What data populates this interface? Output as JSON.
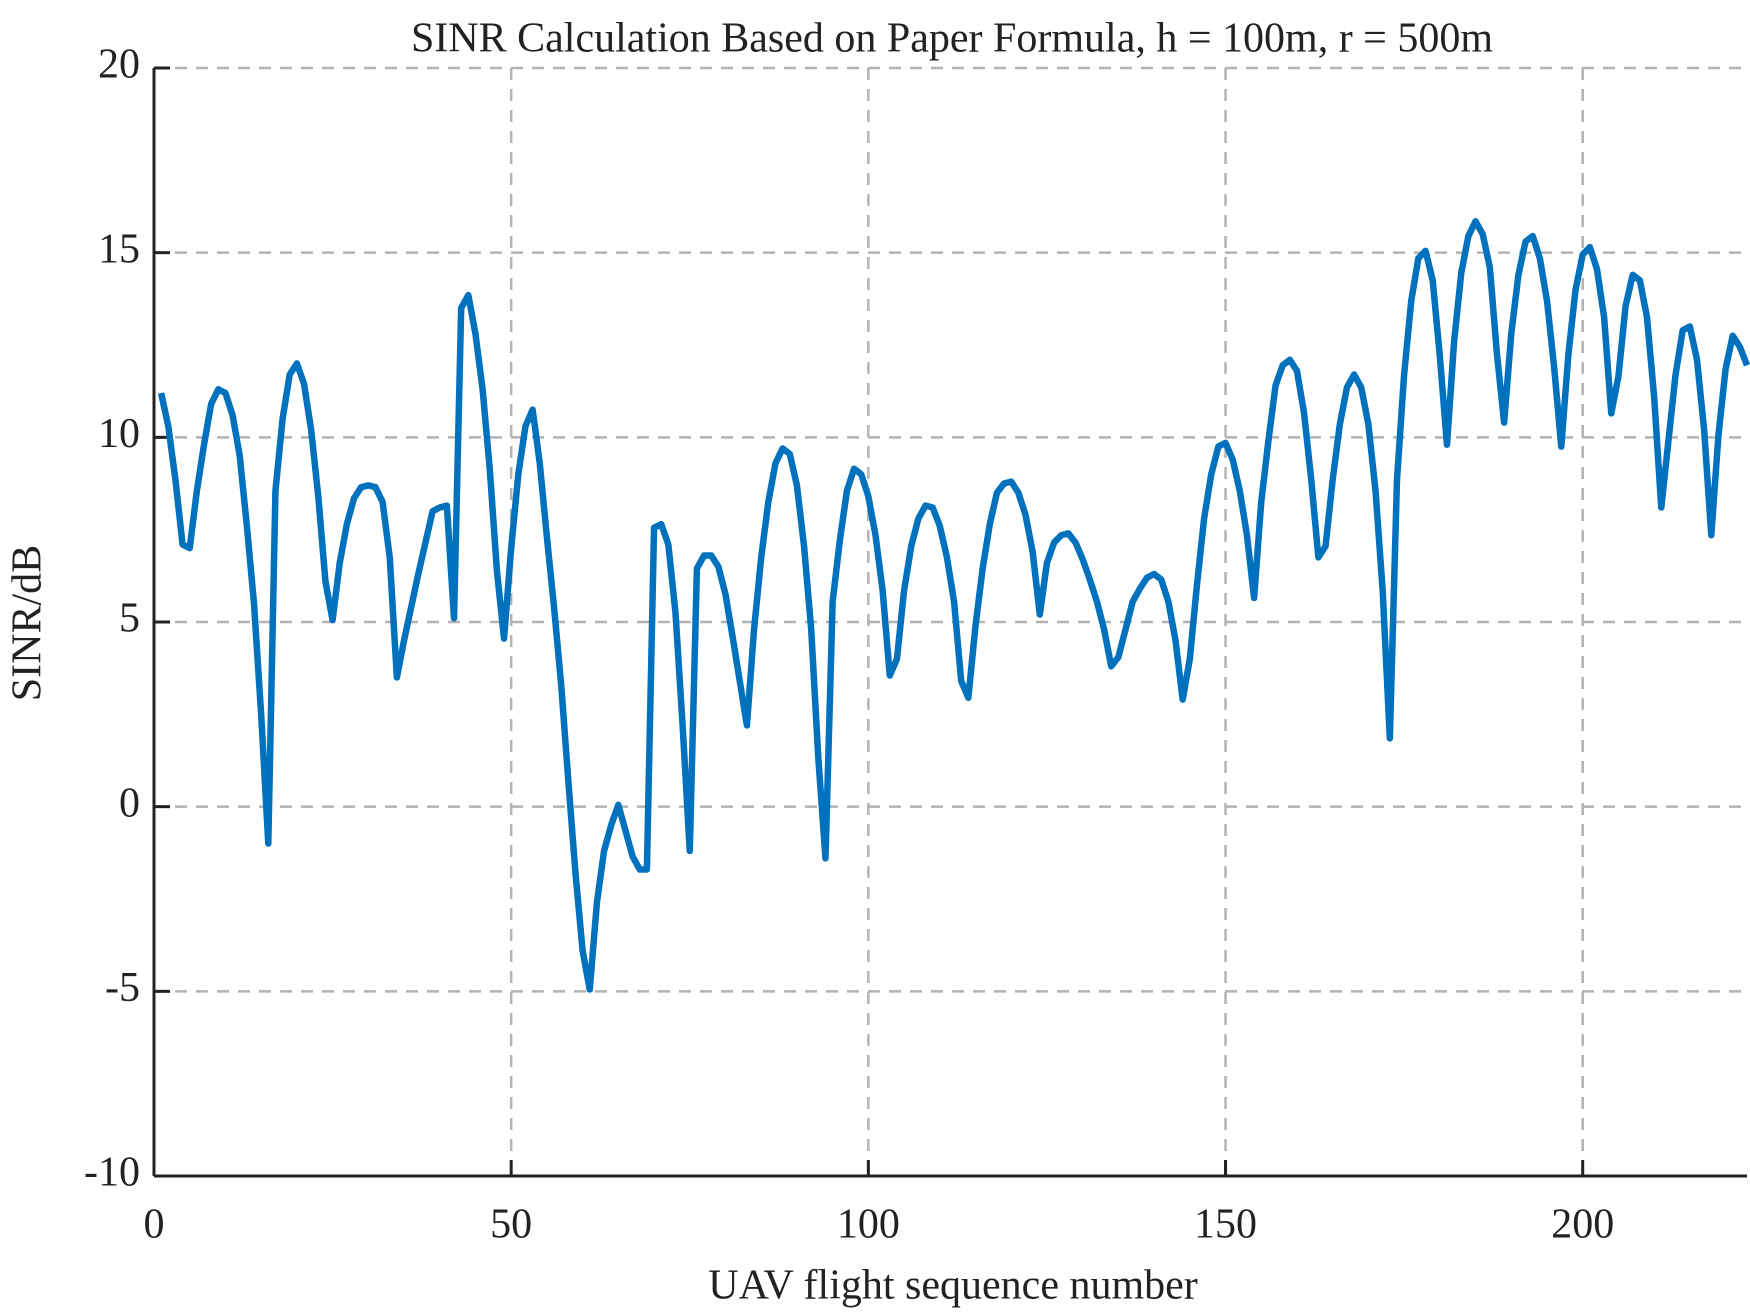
{
  "chart_data": {
    "type": "line",
    "title": "SINR Calculation Based on Paper Formula, h = 100m, r = 500m",
    "xlabel": "UAV flight sequence number",
    "ylabel": "SINR/dB",
    "color": "#0072bd",
    "grid": true,
    "xlim": [
      0,
      223
    ],
    "ylim": [
      -10,
      20
    ],
    "xticks": [
      0,
      50,
      100,
      150,
      200
    ],
    "yticks": [
      -10,
      -5,
      0,
      5,
      10,
      15,
      20
    ],
    "x": [
      1,
      2,
      3,
      4,
      5,
      6,
      7,
      8,
      9,
      10,
      11,
      12,
      13,
      14,
      15,
      16,
      17,
      18,
      19,
      20,
      21,
      22,
      23,
      24,
      25,
      26,
      27,
      28,
      29,
      30,
      31,
      32,
      33,
      34,
      35,
      36,
      37,
      38,
      39,
      40,
      41,
      42,
      43,
      44,
      45,
      46,
      47,
      48,
      49,
      50,
      51,
      52,
      53,
      54,
      55,
      56,
      57,
      58,
      59,
      60,
      61,
      62,
      63,
      64,
      65,
      66,
      67,
      68,
      69,
      70,
      71,
      72,
      73,
      74,
      75,
      76,
      77,
      78,
      79,
      80,
      81,
      82,
      83,
      84,
      85,
      86,
      87,
      88,
      89,
      90,
      91,
      92,
      93,
      94,
      95,
      96,
      97,
      98,
      99,
      100,
      101,
      102,
      103,
      104,
      105,
      106,
      107,
      108,
      109,
      110,
      111,
      112,
      113,
      114,
      115,
      116,
      117,
      118,
      119,
      120,
      121,
      122,
      123,
      124,
      125,
      126,
      127,
      128,
      129,
      130,
      131,
      132,
      133,
      134,
      135,
      136,
      137,
      138,
      139,
      140,
      141,
      142,
      143,
      144,
      145,
      146,
      147,
      148,
      149,
      150,
      151,
      152,
      153,
      154,
      155,
      156,
      157,
      158,
      159,
      160,
      161,
      162,
      163,
      164,
      165,
      166,
      167,
      168,
      169,
      170,
      171,
      172,
      173,
      174,
      175,
      176,
      177,
      178,
      179,
      180,
      181,
      182,
      183,
      184,
      185,
      186,
      187,
      188,
      189,
      190,
      191,
      192,
      193,
      194,
      195,
      196,
      197,
      198,
      199,
      200,
      201,
      202,
      203,
      204,
      205,
      206,
      207,
      208,
      209,
      210,
      211,
      212,
      213,
      214,
      215,
      216,
      217,
      218,
      219,
      220,
      221,
      222,
      223
    ],
    "values": [
      11.2,
      10.3,
      8.85,
      7.1,
      7.0,
      8.55,
      9.8,
      10.9,
      11.3,
      11.2,
      10.6,
      9.5,
      7.6,
      5.5,
      2.5,
      -1.0,
      8.55,
      10.5,
      11.7,
      12.0,
      11.45,
      10.2,
      8.4,
      6.1,
      5.05,
      6.6,
      7.65,
      8.35,
      8.65,
      8.7,
      8.65,
      8.25,
      6.75,
      3.5,
      4.5,
      5.4,
      6.3,
      7.15,
      8.0,
      8.1,
      8.15,
      5.1,
      13.5,
      13.85,
      12.8,
      11.3,
      9.15,
      6.4,
      4.55,
      7.0,
      9.0,
      10.3,
      10.75,
      9.3,
      7.3,
      5.4,
      3.3,
      0.7,
      -1.8,
      -3.9,
      -4.95,
      -2.6,
      -1.2,
      -0.5,
      0.05,
      -0.65,
      -1.35,
      -1.7,
      -1.7,
      7.55,
      7.65,
      7.1,
      5.25,
      2.2,
      -1.2,
      6.45,
      6.8,
      6.8,
      6.5,
      5.75,
      4.6,
      3.4,
      2.2,
      4.8,
      6.75,
      8.25,
      9.3,
      9.7,
      9.55,
      8.7,
      7.05,
      4.8,
      1.3,
      -1.4,
      5.55,
      7.2,
      8.55,
      9.15,
      9.0,
      8.4,
      7.35,
      5.85,
      3.55,
      4.0,
      5.85,
      7.05,
      7.8,
      8.15,
      8.1,
      7.6,
      6.75,
      5.55,
      3.4,
      2.95,
      4.9,
      6.45,
      7.65,
      8.5,
      8.75,
      8.8,
      8.5,
      7.9,
      6.9,
      5.2,
      6.6,
      7.15,
      7.35,
      7.4,
      7.15,
      6.7,
      6.15,
      5.55,
      4.8,
      3.8,
      4.05,
      4.8,
      5.55,
      5.9,
      6.2,
      6.3,
      6.15,
      5.55,
      4.5,
      2.9,
      4.0,
      6.0,
      7.8,
      9.0,
      9.75,
      9.85,
      9.4,
      8.55,
      7.35,
      5.65,
      8.25,
      9.9,
      11.4,
      11.95,
      12.1,
      11.8,
      10.65,
      8.85,
      6.75,
      7.05,
      8.85,
      10.35,
      11.35,
      11.7,
      11.35,
      10.35,
      8.55,
      5.85,
      1.85,
      8.85,
      11.7,
      13.7,
      14.85,
      15.05,
      14.25,
      12.2,
      9.8,
      12.6,
      14.45,
      15.45,
      15.85,
      15.5,
      14.6,
      12.25,
      10.4,
      12.8,
      14.4,
      15.3,
      15.45,
      14.85,
      13.7,
      11.9,
      9.75,
      12.25,
      14.0,
      14.95,
      15.15,
      14.55,
      13.25,
      10.65,
      11.65,
      13.55,
      14.4,
      14.25,
      13.25,
      11.1,
      8.1,
      9.9,
      11.7,
      12.9,
      13.0,
      12.1,
      10.2,
      7.35,
      10.05,
      11.85,
      12.75,
      12.45,
      11.95
    ]
  }
}
